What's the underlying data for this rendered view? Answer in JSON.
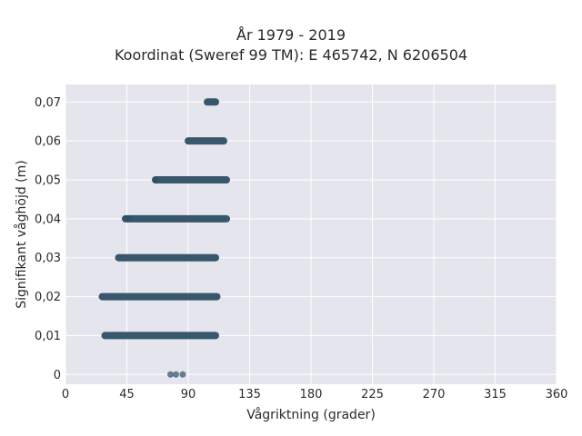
{
  "chart_data": {
    "type": "scatter",
    "title": "År 1979 - 2019",
    "subtitle": "Koordinat (Sweref 99 TM): E 465742, N 6206504",
    "xlabel": "Vågriktning (grader)",
    "ylabel": "Signifikant våghöjd (m)",
    "xlim": [
      0,
      360
    ],
    "ylim": [
      -0.0025,
      0.0745
    ],
    "x_ticks": [
      0,
      45,
      90,
      135,
      180,
      225,
      270,
      315,
      360
    ],
    "x_tick_labels": [
      "0",
      "45",
      "90",
      "135",
      "180",
      "225",
      "270",
      "315",
      "360"
    ],
    "y_ticks": [
      0,
      0.01,
      0.02,
      0.03,
      0.04,
      0.05,
      0.06,
      0.07
    ],
    "y_tick_labels": [
      "0",
      "0,01",
      "0,02",
      "0,03",
      "0,04",
      "0,05",
      "0,06",
      "0,07"
    ],
    "grid": true,
    "marker_color": "#2f4f66",
    "background_color": "#e5e5ee",
    "series": [
      {
        "ranges": [
          {
            "y": 0.0,
            "x_start": 77,
            "x_end": 86,
            "points": [
              77,
              81,
              86
            ]
          },
          {
            "y": 0.01,
            "x_start": 29,
            "x_end": 110
          },
          {
            "y": 0.02,
            "x_start": 27,
            "x_end": 111
          },
          {
            "y": 0.03,
            "x_start": 39,
            "x_end": 110
          },
          {
            "y": 0.04,
            "x_start": 44,
            "x_end": 118,
            "points": [
              44,
              47
            ]
          },
          {
            "y": 0.05,
            "x_start": 66,
            "x_end": 118,
            "points": [
              66
            ]
          },
          {
            "y": 0.06,
            "x_start": 90,
            "x_end": 116
          },
          {
            "y": 0.07,
            "x_start": 104,
            "x_end": 110
          }
        ]
      }
    ]
  }
}
